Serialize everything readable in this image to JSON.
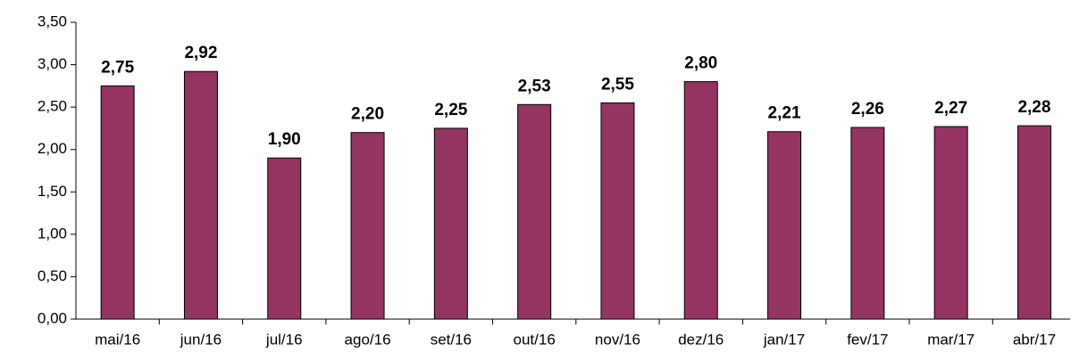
{
  "chart_data": {
    "type": "bar",
    "categories": [
      "mai/16",
      "jun/16",
      "jul/16",
      "ago/16",
      "set/16",
      "out/16",
      "nov/16",
      "dez/16",
      "jan/17",
      "fev/17",
      "mar/17",
      "abr/17"
    ],
    "values": [
      2.75,
      2.92,
      1.9,
      2.2,
      2.25,
      2.53,
      2.55,
      2.8,
      2.21,
      2.26,
      2.27,
      2.28
    ],
    "value_labels": [
      "2,75",
      "2,92",
      "1,90",
      "2,20",
      "2,25",
      "2,53",
      "2,55",
      "2,80",
      "2,21",
      "2,26",
      "2,27",
      "2,28"
    ],
    "color": "#943462",
    "ylim": [
      0,
      3.5
    ],
    "yticks": [
      {
        "value": 0,
        "label": "0,00"
      },
      {
        "value": 0.5,
        "label": "0,50"
      },
      {
        "value": 1,
        "label": "1,00"
      },
      {
        "value": 1.5,
        "label": "1,50"
      },
      {
        "value": 2,
        "label": "2,00"
      },
      {
        "value": 2.5,
        "label": "2,50"
      },
      {
        "value": 3,
        "label": "3,00"
      },
      {
        "value": 3.5,
        "label": "3,50"
      }
    ],
    "grid": false
  }
}
